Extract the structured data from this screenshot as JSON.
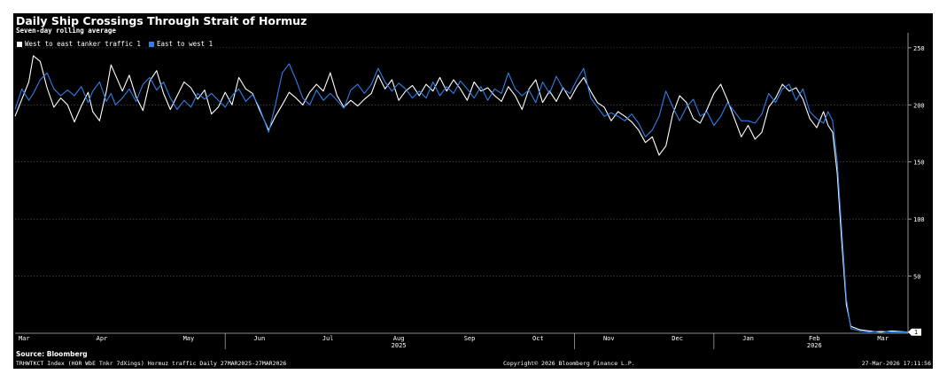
{
  "chart_data": {
    "type": "line",
    "title": "Daily Ship Crossings Through Strait of Hormuz",
    "subtitle": "Seven-day rolling average",
    "x_range": [
      "2025-03-01",
      "2026-03-27"
    ],
    "ylim": [
      0,
      260
    ],
    "y_ticks": [
      50,
      100,
      150,
      200,
      250
    ],
    "y_tick_labels": [
      "50",
      "100",
      "150",
      "200",
      "250"
    ],
    "y_axis_side": "right",
    "grid": true,
    "legend_placement": "top-left",
    "x_month_labels": [
      {
        "label": "Mar",
        "date": "2025-03-05"
      },
      {
        "label": "Apr",
        "date": "2025-04-08"
      },
      {
        "label": "May",
        "date": "2025-05-16"
      },
      {
        "label": "Jun",
        "date": "2025-06-16"
      },
      {
        "label": "Jul",
        "date": "2025-07-16"
      },
      {
        "label": "Aug",
        "date": "2025-08-16"
      },
      {
        "label": "Sep",
        "date": "2025-09-16"
      },
      {
        "label": "Oct",
        "date": "2025-10-16"
      },
      {
        "label": "Nov",
        "date": "2025-11-16"
      },
      {
        "label": "Dec",
        "date": "2025-12-16"
      },
      {
        "label": "Jan",
        "date": "2026-01-16"
      },
      {
        "label": "Feb",
        "date": "2026-02-14"
      },
      {
        "label": "Mar",
        "date": "2026-03-16"
      }
    ],
    "x_year_labels": [
      {
        "label": "2025",
        "date": "2025-08-16"
      },
      {
        "label": "2026",
        "date": "2026-02-14"
      }
    ],
    "x_major_dividers": [
      "2025-06-01",
      "2025-11-01",
      "2026-01-01"
    ],
    "last_value_label": "1",
    "series": [
      {
        "name": "West to east tanker traffic 1",
        "color": "#ffffff",
        "points": [
          [
            "2025-03-01",
            190
          ],
          [
            "2025-03-04",
            205
          ],
          [
            "2025-03-07",
            220
          ],
          [
            "2025-03-09",
            243
          ],
          [
            "2025-03-12",
            238
          ],
          [
            "2025-03-15",
            215
          ],
          [
            "2025-03-18",
            198
          ],
          [
            "2025-03-21",
            206
          ],
          [
            "2025-03-24",
            200
          ],
          [
            "2025-03-27",
            185
          ],
          [
            "2025-03-30",
            199
          ],
          [
            "2025-04-02",
            211
          ],
          [
            "2025-04-04",
            194
          ],
          [
            "2025-04-07",
            186
          ],
          [
            "2025-04-10",
            212
          ],
          [
            "2025-04-12",
            235
          ],
          [
            "2025-04-14",
            226
          ],
          [
            "2025-04-17",
            212
          ],
          [
            "2025-04-20",
            226
          ],
          [
            "2025-04-23",
            207
          ],
          [
            "2025-04-26",
            195
          ],
          [
            "2025-04-29",
            221
          ],
          [
            "2025-05-02",
            230
          ],
          [
            "2025-05-05",
            210
          ],
          [
            "2025-05-08",
            196
          ],
          [
            "2025-05-11",
            208
          ],
          [
            "2025-05-14",
            220
          ],
          [
            "2025-05-17",
            215
          ],
          [
            "2025-05-20",
            205
          ],
          [
            "2025-05-23",
            213
          ],
          [
            "2025-05-26",
            192
          ],
          [
            "2025-05-29",
            198
          ],
          [
            "2025-06-01",
            211
          ],
          [
            "2025-06-04",
            200
          ],
          [
            "2025-06-07",
            224
          ],
          [
            "2025-06-10",
            214
          ],
          [
            "2025-06-13",
            210
          ],
          [
            "2025-06-16",
            196
          ],
          [
            "2025-06-20",
            178
          ],
          [
            "2025-06-23",
            190
          ],
          [
            "2025-06-26",
            200
          ],
          [
            "2025-06-29",
            211
          ],
          [
            "2025-07-02",
            206
          ],
          [
            "2025-07-05",
            200
          ],
          [
            "2025-07-08",
            211
          ],
          [
            "2025-07-11",
            218
          ],
          [
            "2025-07-14",
            212
          ],
          [
            "2025-07-17",
            228
          ],
          [
            "2025-07-20",
            208
          ],
          [
            "2025-07-23",
            198
          ],
          [
            "2025-07-26",
            204
          ],
          [
            "2025-07-29",
            199
          ],
          [
            "2025-08-01",
            205
          ],
          [
            "2025-08-04",
            210
          ],
          [
            "2025-08-07",
            226
          ],
          [
            "2025-08-10",
            214
          ],
          [
            "2025-08-13",
            222
          ],
          [
            "2025-08-16",
            204
          ],
          [
            "2025-08-19",
            212
          ],
          [
            "2025-08-22",
            217
          ],
          [
            "2025-08-25",
            208
          ],
          [
            "2025-08-28",
            218
          ],
          [
            "2025-08-31",
            212
          ],
          [
            "2025-09-03",
            224
          ],
          [
            "2025-09-06",
            212
          ],
          [
            "2025-09-09",
            222
          ],
          [
            "2025-09-12",
            214
          ],
          [
            "2025-09-15",
            204
          ],
          [
            "2025-09-18",
            220
          ],
          [
            "2025-09-21",
            212
          ],
          [
            "2025-09-24",
            215
          ],
          [
            "2025-09-27",
            208
          ],
          [
            "2025-09-30",
            203
          ],
          [
            "2025-10-03",
            216
          ],
          [
            "2025-10-06",
            208
          ],
          [
            "2025-10-09",
            196
          ],
          [
            "2025-10-12",
            214
          ],
          [
            "2025-10-15",
            222
          ],
          [
            "2025-10-18",
            202
          ],
          [
            "2025-10-21",
            212
          ],
          [
            "2025-10-24",
            203
          ],
          [
            "2025-10-27",
            215
          ],
          [
            "2025-10-30",
            205
          ],
          [
            "2025-11-02",
            216
          ],
          [
            "2025-11-05",
            224
          ],
          [
            "2025-11-08",
            212
          ],
          [
            "2025-11-11",
            202
          ],
          [
            "2025-11-14",
            198
          ],
          [
            "2025-11-17",
            186
          ],
          [
            "2025-11-20",
            194
          ],
          [
            "2025-11-23",
            190
          ],
          [
            "2025-11-26",
            185
          ],
          [
            "2025-11-29",
            178
          ],
          [
            "2025-12-02",
            167
          ],
          [
            "2025-12-05",
            172
          ],
          [
            "2025-12-08",
            156
          ],
          [
            "2025-12-11",
            164
          ],
          [
            "2025-12-14",
            192
          ],
          [
            "2025-12-17",
            208
          ],
          [
            "2025-12-20",
            202
          ],
          [
            "2025-12-23",
            188
          ],
          [
            "2025-12-26",
            184
          ],
          [
            "2025-12-29",
            196
          ],
          [
            "2026-01-01",
            210
          ],
          [
            "2026-01-04",
            218
          ],
          [
            "2026-01-07",
            204
          ],
          [
            "2026-01-10",
            188
          ],
          [
            "2026-01-13",
            172
          ],
          [
            "2026-01-16",
            182
          ],
          [
            "2026-01-19",
            170
          ],
          [
            "2026-01-22",
            176
          ],
          [
            "2026-01-25",
            198
          ],
          [
            "2026-01-28",
            206
          ],
          [
            "2026-01-31",
            218
          ],
          [
            "2026-02-03",
            212
          ],
          [
            "2026-02-06",
            215
          ],
          [
            "2026-02-09",
            205
          ],
          [
            "2026-02-12",
            188
          ],
          [
            "2026-02-15",
            180
          ],
          [
            "2026-02-18",
            194
          ],
          [
            "2026-02-20",
            182
          ],
          [
            "2026-02-22",
            176
          ],
          [
            "2026-02-24",
            140
          ],
          [
            "2026-02-26",
            80
          ],
          [
            "2026-02-28",
            25
          ],
          [
            "2026-03-02",
            6
          ],
          [
            "2026-03-06",
            3
          ],
          [
            "2026-03-10",
            2
          ],
          [
            "2026-03-15",
            1
          ],
          [
            "2026-03-20",
            2
          ],
          [
            "2026-03-27",
            1
          ]
        ]
      },
      {
        "name": "East to west 1",
        "color": "#2e7fe8",
        "points": [
          [
            "2025-03-01",
            196
          ],
          [
            "2025-03-04",
            214
          ],
          [
            "2025-03-07",
            204
          ],
          [
            "2025-03-09",
            210
          ],
          [
            "2025-03-12",
            222
          ],
          [
            "2025-03-15",
            228
          ],
          [
            "2025-03-18",
            214
          ],
          [
            "2025-03-21",
            208
          ],
          [
            "2025-03-24",
            213
          ],
          [
            "2025-03-27",
            208
          ],
          [
            "2025-03-30",
            216
          ],
          [
            "2025-04-02",
            202
          ],
          [
            "2025-04-04",
            212
          ],
          [
            "2025-04-07",
            220
          ],
          [
            "2025-04-10",
            203
          ],
          [
            "2025-04-12",
            210
          ],
          [
            "2025-04-14",
            200
          ],
          [
            "2025-04-17",
            206
          ],
          [
            "2025-04-20",
            214
          ],
          [
            "2025-04-23",
            203
          ],
          [
            "2025-04-26",
            218
          ],
          [
            "2025-04-29",
            224
          ],
          [
            "2025-05-02",
            213
          ],
          [
            "2025-05-05",
            220
          ],
          [
            "2025-05-08",
            206
          ],
          [
            "2025-05-11",
            196
          ],
          [
            "2025-05-14",
            204
          ],
          [
            "2025-05-17",
            198
          ],
          [
            "2025-05-20",
            210
          ],
          [
            "2025-05-23",
            205
          ],
          [
            "2025-05-26",
            210
          ],
          [
            "2025-05-29",
            204
          ],
          [
            "2025-06-01",
            198
          ],
          [
            "2025-06-04",
            208
          ],
          [
            "2025-06-07",
            214
          ],
          [
            "2025-06-10",
            203
          ],
          [
            "2025-06-13",
            209
          ],
          [
            "2025-06-16",
            198
          ],
          [
            "2025-06-20",
            176
          ],
          [
            "2025-06-23",
            200
          ],
          [
            "2025-06-26",
            228
          ],
          [
            "2025-06-29",
            236
          ],
          [
            "2025-07-02",
            222
          ],
          [
            "2025-07-05",
            206
          ],
          [
            "2025-07-08",
            200
          ],
          [
            "2025-07-11",
            213
          ],
          [
            "2025-07-14",
            204
          ],
          [
            "2025-07-17",
            210
          ],
          [
            "2025-07-20",
            204
          ],
          [
            "2025-07-23",
            197
          ],
          [
            "2025-07-26",
            213
          ],
          [
            "2025-07-29",
            218
          ],
          [
            "2025-08-01",
            210
          ],
          [
            "2025-08-04",
            218
          ],
          [
            "2025-08-07",
            232
          ],
          [
            "2025-08-10",
            220
          ],
          [
            "2025-08-13",
            212
          ],
          [
            "2025-08-16",
            219
          ],
          [
            "2025-08-19",
            214
          ],
          [
            "2025-08-22",
            206
          ],
          [
            "2025-08-25",
            212
          ],
          [
            "2025-08-28",
            206
          ],
          [
            "2025-08-31",
            220
          ],
          [
            "2025-09-03",
            208
          ],
          [
            "2025-09-06",
            216
          ],
          [
            "2025-09-09",
            210
          ],
          [
            "2025-09-12",
            221
          ],
          [
            "2025-09-15",
            214
          ],
          [
            "2025-09-18",
            206
          ],
          [
            "2025-09-21",
            216
          ],
          [
            "2025-09-24",
            204
          ],
          [
            "2025-09-27",
            214
          ],
          [
            "2025-09-30",
            210
          ],
          [
            "2025-10-03",
            228
          ],
          [
            "2025-10-06",
            214
          ],
          [
            "2025-10-09",
            208
          ],
          [
            "2025-10-12",
            213
          ],
          [
            "2025-10-15",
            202
          ],
          [
            "2025-10-18",
            220
          ],
          [
            "2025-10-21",
            210
          ],
          [
            "2025-10-24",
            225
          ],
          [
            "2025-10-27",
            214
          ],
          [
            "2025-10-30",
            210
          ],
          [
            "2025-11-02",
            222
          ],
          [
            "2025-11-05",
            232
          ],
          [
            "2025-11-08",
            206
          ],
          [
            "2025-11-11",
            198
          ],
          [
            "2025-11-14",
            190
          ],
          [
            "2025-11-17",
            193
          ],
          [
            "2025-11-20",
            190
          ],
          [
            "2025-11-23",
            186
          ],
          [
            "2025-11-26",
            192
          ],
          [
            "2025-11-29",
            184
          ],
          [
            "2025-12-02",
            172
          ],
          [
            "2025-12-05",
            178
          ],
          [
            "2025-12-08",
            190
          ],
          [
            "2025-12-11",
            212
          ],
          [
            "2025-12-14",
            198
          ],
          [
            "2025-12-17",
            186
          ],
          [
            "2025-12-20",
            198
          ],
          [
            "2025-12-23",
            205
          ],
          [
            "2025-12-26",
            190
          ],
          [
            "2025-12-29",
            194
          ],
          [
            "2026-01-01",
            182
          ],
          [
            "2026-01-04",
            190
          ],
          [
            "2026-01-07",
            202
          ],
          [
            "2026-01-10",
            194
          ],
          [
            "2026-01-13",
            186
          ],
          [
            "2026-01-16",
            186
          ],
          [
            "2026-01-19",
            184
          ],
          [
            "2026-01-22",
            192
          ],
          [
            "2026-01-25",
            210
          ],
          [
            "2026-01-28",
            202
          ],
          [
            "2026-01-31",
            214
          ],
          [
            "2026-02-03",
            218
          ],
          [
            "2026-02-06",
            204
          ],
          [
            "2026-02-09",
            214
          ],
          [
            "2026-02-12",
            194
          ],
          [
            "2026-02-15",
            188
          ],
          [
            "2026-02-18",
            184
          ],
          [
            "2026-02-20",
            194
          ],
          [
            "2026-02-22",
            186
          ],
          [
            "2026-02-24",
            150
          ],
          [
            "2026-02-26",
            90
          ],
          [
            "2026-02-28",
            30
          ],
          [
            "2026-03-02",
            4
          ],
          [
            "2026-03-06",
            2
          ],
          [
            "2026-03-10",
            1
          ],
          [
            "2026-03-15",
            2
          ],
          [
            "2026-03-20",
            1
          ],
          [
            "2026-03-27",
            1
          ]
        ]
      }
    ]
  },
  "footer": {
    "source": "Source: Bloomberg",
    "left": "TRHWTKCT Index (HOR WbE Tnkr 7dXings) Hormuz traffic Daily 27MAR2025-27MAR2026",
    "middle": "Copyright© 2026 Bloomberg Finance L.P.",
    "right": "27-Mar-2026 17:11:56"
  }
}
